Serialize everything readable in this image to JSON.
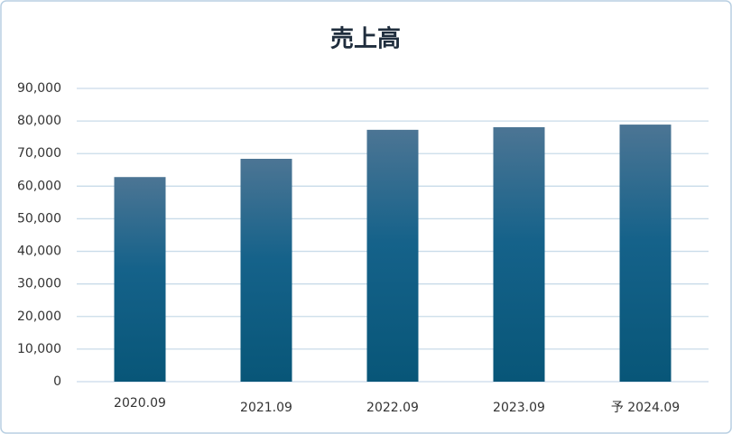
{
  "chart_data": {
    "type": "bar",
    "title": "売上高",
    "categories": [
      "2020.09",
      "2021.09",
      "2022.09",
      "2023.09",
      "予 2024.09"
    ],
    "values": [
      62800,
      68400,
      77300,
      78100,
      78900
    ],
    "ylim": [
      0,
      90000
    ],
    "yticks": [
      0,
      {
        "value": 10000,
        "label": "10,000"
      },
      {
        "value": 20000,
        "label": "20,000"
      },
      {
        "value": 30000,
        "label": "30,000"
      },
      {
        "value": 40000,
        "label": "40,000"
      },
      {
        "value": 50000,
        "label": "50,000"
      },
      {
        "value": 60000,
        "label": "60,000"
      },
      {
        "value": 70000,
        "label": "70,000"
      },
      {
        "value": 80000,
        "label": "80,000"
      },
      {
        "value": 90000,
        "label": "90,000"
      }
    ],
    "grid": true
  }
}
